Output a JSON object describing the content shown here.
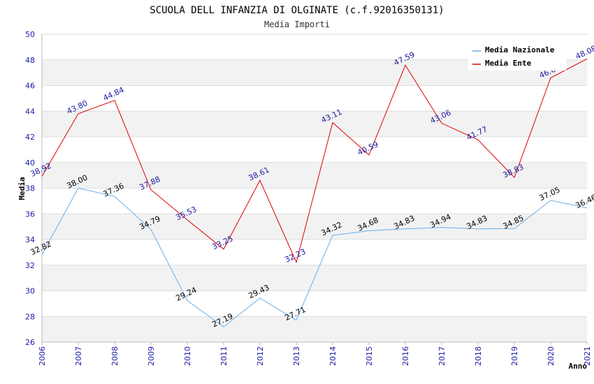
{
  "chart_data": {
    "type": "line",
    "title": "SCUOLA DELL INFANZIA DI OLGINATE (c.f.92016350131)",
    "subtitle": "Media Importi",
    "xlabel": "Anno",
    "ylabel": "Media",
    "ylim": [
      26,
      50
    ],
    "yticks": [
      26,
      28,
      30,
      32,
      34,
      36,
      38,
      40,
      42,
      44,
      46,
      48,
      50
    ],
    "categories": [
      "2006",
      "2007",
      "2008",
      "2009",
      "2010",
      "2011",
      "2012",
      "2013",
      "2014",
      "2015",
      "2016",
      "2017",
      "2018",
      "2019",
      "2020",
      "2021"
    ],
    "series": [
      {
        "name": "Media Nazionale",
        "color": "#6aaee8",
        "label_color": "#000000",
        "values": [
          32.82,
          38.0,
          37.36,
          34.79,
          29.24,
          27.19,
          29.43,
          27.71,
          34.32,
          34.68,
          34.83,
          34.94,
          34.83,
          34.85,
          37.05,
          36.46
        ],
        "labels": [
          "32.82",
          "38.00",
          "37.36",
          "34.79",
          "29.24",
          "27.19",
          "29.43",
          "27.71",
          "34.32",
          "34.68",
          "34.83",
          "34.94",
          "34.83",
          "34.85",
          "37.05",
          "36.46"
        ]
      },
      {
        "name": "Media Ente",
        "color": "#e00000",
        "label_color": "#1a1aa6",
        "values": [
          38.92,
          43.8,
          44.84,
          37.88,
          35.53,
          33.25,
          38.61,
          32.23,
          43.11,
          40.59,
          47.59,
          43.06,
          41.77,
          38.83,
          46.6,
          48.08
        ],
        "labels": [
          "38.92",
          "43.80",
          "44.84",
          "37.88",
          "35.53",
          "33.25",
          "38.61",
          "32.23",
          "43.11",
          "40.59",
          "47.59",
          "43.06",
          "41.77",
          "38.83",
          "46.60",
          "48.08"
        ]
      }
    ],
    "grid": true,
    "legend_position": "top-right"
  }
}
